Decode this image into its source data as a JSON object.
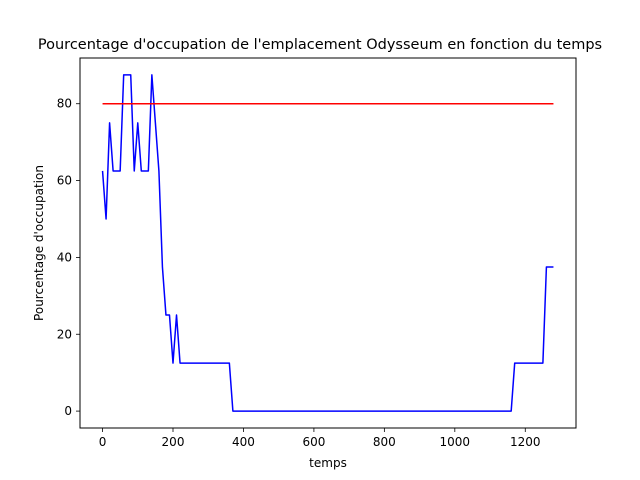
{
  "chart_data": {
    "type": "line",
    "title": "Pourcentage d'occupation de l'emplacement Odysseum en fonction du temps",
    "xlabel": "temps",
    "ylabel": "Pourcentage d'occupation",
    "xlim": [
      -64,
      1344
    ],
    "ylim": [
      -4.4,
      91.9
    ],
    "xticks": [
      0,
      200,
      400,
      600,
      800,
      1000,
      1200
    ],
    "yticks": [
      0,
      20,
      40,
      60,
      80
    ],
    "grid": false,
    "legend": "none",
    "colors": {
      "occupation": "#0000ff",
      "threshold": "#ff0000"
    },
    "series": [
      {
        "color": "#0000ff",
        "x": [
          0,
          10,
          20,
          30,
          40,
          50,
          60,
          70,
          80,
          90,
          100,
          110,
          120,
          130,
          140,
          150,
          160,
          170,
          180,
          190,
          200,
          210,
          220,
          230,
          240,
          250,
          260,
          270,
          280,
          290,
          300,
          310,
          320,
          330,
          340,
          350,
          360,
          370,
          380,
          1160,
          1170,
          1180,
          1190,
          1200,
          1210,
          1220,
          1230,
          1240,
          1250,
          1260,
          1270,
          1280
        ],
        "y": [
          62.5,
          50,
          75,
          62.5,
          62.5,
          62.5,
          87.5,
          87.5,
          87.5,
          62.5,
          75,
          62.5,
          62.5,
          62.5,
          87.5,
          75,
          62.5,
          37.5,
          25,
          25,
          12.5,
          25,
          12.5,
          12.5,
          12.5,
          12.5,
          12.5,
          12.5,
          12.5,
          12.5,
          12.5,
          12.5,
          12.5,
          12.5,
          12.5,
          12.5,
          12.5,
          0,
          0,
          0,
          12.5,
          12.5,
          12.5,
          12.5,
          12.5,
          12.5,
          12.5,
          12.5,
          12.5,
          37.5,
          37.5,
          37.5
        ]
      },
      {
        "color": "#ff0000",
        "x": [
          0,
          1280
        ],
        "y": [
          80,
          80
        ]
      }
    ]
  }
}
